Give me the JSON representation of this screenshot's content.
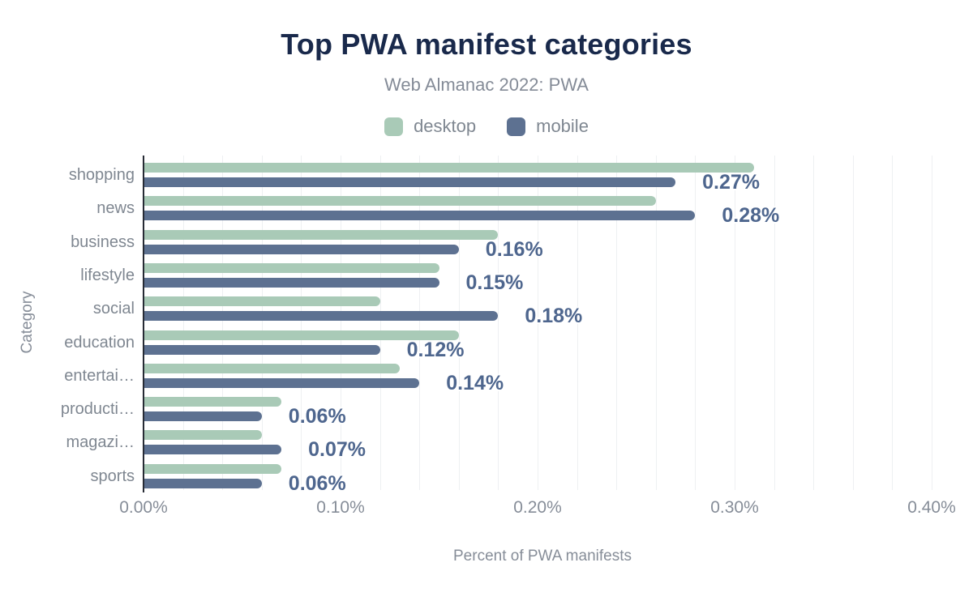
{
  "figure": {
    "title": "Top PWA manifest categories",
    "subtitle": "Web Almanac 2022: PWA"
  },
  "legend": [
    {
      "label": "desktop",
      "color": "#a9cab7"
    },
    {
      "label": "mobile",
      "color": "#5d7191"
    }
  ],
  "axes": {
    "x_title": "Percent of PWA manifests",
    "y_title": "Category",
    "x_ticks": [
      "0.00%",
      "0.10%",
      "0.20%",
      "0.30%",
      "0.40%"
    ]
  },
  "chart_data": {
    "type": "bar",
    "orientation": "horizontal",
    "title": "Top PWA manifest categories",
    "subtitle": "Web Almanac 2022: PWA",
    "xlabel": "Percent of PWA manifests",
    "ylabel": "Category",
    "xlim": [
      0,
      0.405
    ],
    "x_tick_step": 0.1,
    "grid": "vertical minor gridlines every 0.02%",
    "grid_step": 0.02,
    "legend_position": "top center",
    "categories": [
      "shopping",
      "news",
      "business",
      "lifestyle",
      "social",
      "education",
      "entertainment",
      "productivity",
      "magazines",
      "sports"
    ],
    "category_display_labels": [
      "shopping",
      "news",
      "business",
      "lifestyle",
      "social",
      "education",
      "entertai…",
      "producti…",
      "magazi…",
      "sports"
    ],
    "series": [
      {
        "name": "desktop",
        "color": "#a9cab7",
        "values": [
          0.31,
          0.26,
          0.18,
          0.15,
          0.12,
          0.16,
          0.13,
          0.07,
          0.06,
          0.07
        ]
      },
      {
        "name": "mobile",
        "color": "#5d7191",
        "values": [
          0.27,
          0.28,
          0.16,
          0.15,
          0.18,
          0.12,
          0.14,
          0.06,
          0.07,
          0.06
        ]
      }
    ],
    "value_labels": [
      "0.27%",
      "0.28%",
      "0.16%",
      "0.15%",
      "0.18%",
      "0.12%",
      "0.14%",
      "0.06%",
      "0.07%",
      "0.06%"
    ],
    "value_labels_source": "mobile series, shown right of bars",
    "units": "percent of PWA manifests"
  },
  "colors": {
    "background": "#ffffff",
    "title": "#19294b",
    "subtitle": "#848b97",
    "axis_line": "#272b35",
    "gridline": "#eef0f2",
    "category_label": "#7f8791",
    "tick_label": "#868d98",
    "value_label": "#4e668e"
  }
}
